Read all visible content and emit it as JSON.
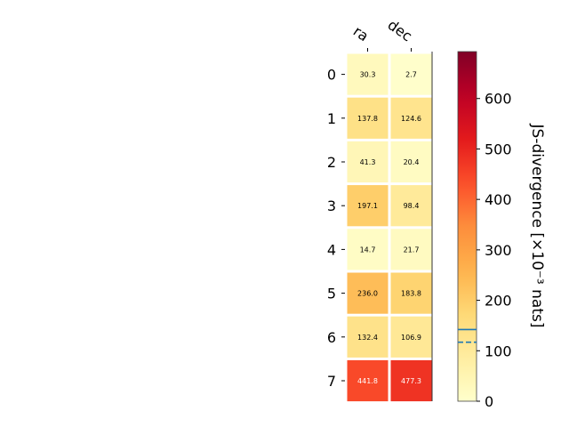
{
  "chart_data": {
    "type": "heatmap",
    "columns": [
      "ra",
      "dec"
    ],
    "rows": [
      "0",
      "1",
      "2",
      "3",
      "4",
      "5",
      "6",
      "7"
    ],
    "values": [
      [
        30.3,
        2.7
      ],
      [
        137.8,
        124.6
      ],
      [
        41.3,
        20.4
      ],
      [
        197.1,
        98.4
      ],
      [
        14.7,
        21.7
      ],
      [
        236.0,
        183.8
      ],
      [
        132.4,
        106.9
      ],
      [
        441.8,
        477.3
      ]
    ],
    "value_labels": [
      [
        "30.3",
        "2.7"
      ],
      [
        "137.8",
        "124.6"
      ],
      [
        "41.3",
        "20.4"
      ],
      [
        "197.1",
        "98.4"
      ],
      [
        "14.7",
        "21.7"
      ],
      [
        "236.0",
        "183.8"
      ],
      [
        "132.4",
        "106.9"
      ],
      [
        "441.8",
        "477.3"
      ]
    ],
    "colormap": "YlOrRd",
    "colorbar": {
      "label": "JS-divergence [×10⁻³ nats]",
      "range": [
        0,
        693
      ],
      "ticks": [
        "0",
        "100",
        "200",
        "300",
        "400",
        "500",
        "600"
      ],
      "tick_values": [
        0,
        100,
        200,
        300,
        400,
        500,
        600
      ],
      "markers": [
        {
          "value": 142,
          "style": "solid",
          "color": "#1f77b4"
        },
        {
          "value": 117,
          "style": "dashed",
          "color": "#1f77b4"
        }
      ]
    }
  }
}
